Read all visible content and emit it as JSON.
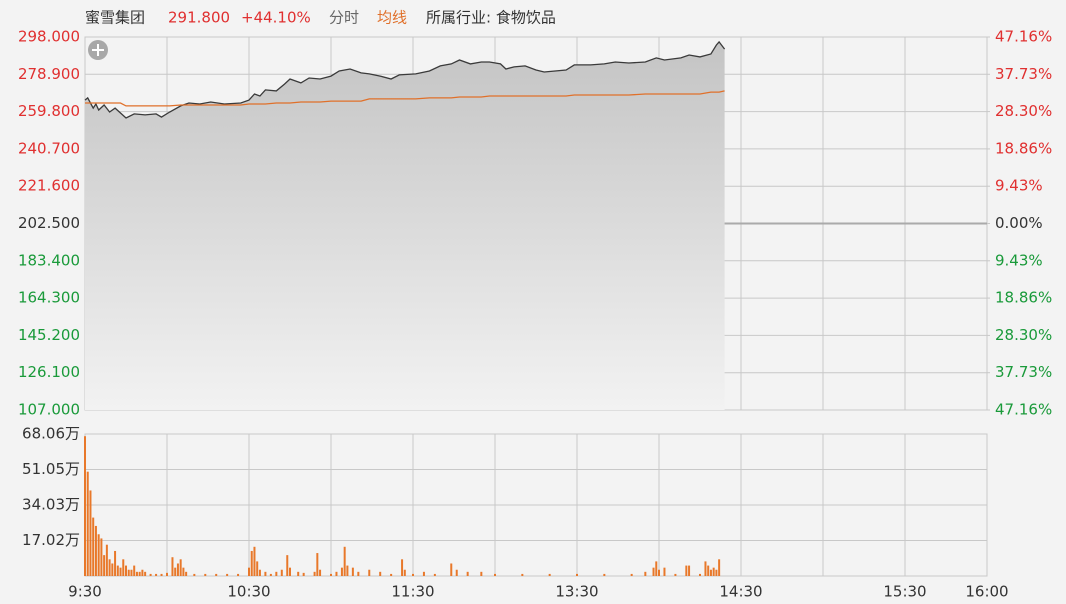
{
  "chart_data": [
    {
      "type": "line",
      "title": "蜜雪集团",
      "quote": "291.800",
      "change": "+44.10%",
      "mode": "分时",
      "industry": "所属行业: 食物饮品",
      "x": [
        0,
        1,
        3,
        4,
        5,
        7,
        9,
        11,
        13,
        15,
        18,
        22,
        26,
        28,
        31,
        35,
        38,
        42,
        46,
        51,
        57,
        60,
        62,
        64,
        66,
        70,
        73,
        75,
        79,
        82,
        86,
        90,
        93,
        97,
        101,
        104,
        108,
        112,
        115,
        121,
        126,
        130,
        134,
        137,
        141,
        145,
        148,
        152,
        154,
        157,
        161,
        165,
        168,
        172,
        176,
        179,
        185,
        190,
        194,
        199,
        205,
        209,
        212,
        218,
        221,
        225,
        229,
        231,
        232,
        234
      ],
      "series": [
        {
          "color": "#3a3a3a",
          "area": true,
          "values": [
            265.7,
            266.8,
            261.6,
            263.7,
            260.6,
            263.2,
            259.6,
            261.6,
            259.1,
            256.5,
            258.6,
            258.1,
            258.6,
            257.0,
            259.6,
            262.7,
            264.2,
            263.7,
            264.7,
            263.7,
            264.2,
            265.7,
            268.8,
            267.8,
            270.9,
            270.4,
            273.9,
            276.5,
            274.5,
            277.0,
            276.5,
            278.0,
            280.6,
            281.6,
            279.6,
            279.1,
            278.0,
            276.5,
            278.6,
            279.1,
            280.6,
            283.2,
            284.2,
            286.2,
            284.2,
            285.2,
            285.2,
            284.2,
            281.6,
            282.7,
            283.2,
            281.1,
            280.1,
            280.6,
            281.1,
            283.7,
            283.7,
            284.2,
            285.2,
            284.7,
            285.2,
            287.3,
            286.2,
            287.3,
            288.8,
            287.8,
            289.3,
            293.9,
            295.5,
            291.8
          ]
        },
        {
          "name": "均线",
          "color": "#e0702a",
          "values": [
            264.2,
            264.2,
            264.2,
            264.2,
            264.2,
            264.2,
            264.2,
            264.2,
            264.2,
            262.7,
            262.7,
            262.7,
            262.7,
            262.7,
            262.7,
            263.2,
            263.2,
            263.2,
            263.2,
            263.2,
            263.2,
            263.7,
            263.7,
            263.7,
            263.7,
            264.2,
            264.2,
            264.2,
            264.7,
            264.7,
            264.7,
            265.2,
            265.2,
            265.2,
            265.2,
            266.3,
            266.3,
            266.3,
            266.3,
            266.3,
            266.8,
            266.8,
            266.8,
            267.3,
            267.3,
            267.3,
            267.8,
            267.8,
            267.8,
            267.8,
            267.8,
            267.8,
            267.8,
            267.8,
            267.8,
            268.3,
            268.3,
            268.3,
            268.3,
            268.3,
            268.8,
            268.8,
            268.8,
            268.8,
            268.8,
            268.8,
            269.8,
            269.8,
            269.8,
            270.4
          ]
        }
      ],
      "xlim": [
        0,
        330
      ],
      "ylim": [
        107,
        298
      ],
      "yticks": [
        {
          "value": 298,
          "label": "298.000"
        },
        {
          "value": 278.9,
          "label": "278.900"
        },
        {
          "value": 259.8,
          "label": "259.800"
        },
        {
          "value": 240.7,
          "label": "240.700"
        },
        {
          "value": 221.6,
          "label": "221.600"
        },
        {
          "value": 202.5,
          "label": "202.500"
        },
        {
          "value": 183.4,
          "label": "183.400"
        },
        {
          "value": 164.3,
          "label": "164.300"
        },
        {
          "value": 145.2,
          "label": "145.200"
        },
        {
          "value": 126.1,
          "label": "126.100"
        },
        {
          "value": 107,
          "label": "107.000"
        }
      ],
      "y2lim": [
        -47.16,
        47.16
      ],
      "y2ticks": [
        {
          "value": 47.16,
          "label": "47.16%"
        },
        {
          "value": 37.73,
          "label": "37.73%"
        },
        {
          "value": 28.3,
          "label": "28.30%"
        },
        {
          "value": 18.86,
          "label": "18.86%"
        },
        {
          "value": 9.43,
          "label": "9.43%"
        },
        {
          "value": 0,
          "label": "0.00%"
        },
        {
          "value": -9.43,
          "label": "9.43%"
        },
        {
          "value": -18.86,
          "label": "18.86%"
        },
        {
          "value": -28.3,
          "label": "28.30%"
        },
        {
          "value": -37.73,
          "label": "37.73%"
        },
        {
          "value": -47.16,
          "label": "47.16%"
        }
      ],
      "up_color": "#e03030",
      "down_color": "#1a9a3a",
      "flat_color": "#333333",
      "grid": true
    },
    {
      "type": "bar",
      "color": "#e8782a",
      "x": [
        0,
        1,
        2,
        3,
        4,
        5,
        6,
        7,
        8,
        9,
        10,
        11,
        12,
        13,
        14,
        15,
        16,
        17,
        18,
        19,
        20,
        21,
        22,
        24,
        26,
        28,
        30,
        32,
        33,
        34,
        35,
        36,
        37,
        40,
        44,
        48,
        52,
        56,
        60,
        61,
        62,
        63,
        64,
        66,
        68,
        70,
        72,
        74,
        75,
        78,
        80,
        84,
        85,
        86,
        90,
        92,
        94,
        95,
        96,
        98,
        100,
        104,
        108,
        112,
        116,
        117,
        120,
        124,
        128,
        134,
        136,
        140,
        145,
        150,
        160,
        170,
        180,
        190,
        200,
        205,
        208,
        209,
        210,
        212,
        216,
        220,
        221,
        225,
        227,
        228,
        229,
        230,
        231,
        232
      ],
      "values": [
        67,
        50,
        41,
        28,
        24,
        20,
        18,
        10,
        15,
        8,
        6,
        12,
        5,
        4,
        8,
        5,
        3,
        3,
        5,
        2,
        2,
        3,
        2,
        1,
        1,
        1,
        1.5,
        9,
        4,
        6,
        8,
        4,
        2,
        1,
        1,
        1,
        1,
        1,
        4,
        12,
        14,
        7,
        3,
        2,
        1,
        2,
        3,
        10,
        4,
        2,
        1.5,
        2,
        11,
        3,
        1,
        2,
        4,
        14,
        5,
        4,
        2,
        3,
        2,
        1,
        8,
        3,
        1,
        2,
        1,
        6,
        3,
        2,
        2,
        1,
        1,
        1,
        1,
        1,
        1,
        2,
        4,
        7,
        3,
        4,
        1,
        5,
        5,
        1,
        7,
        5,
        3,
        4,
        3,
        8
      ],
      "xlim": [
        0,
        330
      ],
      "xticks": [
        {
          "value": 0,
          "label": "9:30"
        },
        {
          "value": 30,
          "label": null
        },
        {
          "value": 60,
          "label": "10:30"
        },
        {
          "value": 90,
          "label": null
        },
        {
          "value": 120,
          "label": "11:30"
        },
        {
          "value": 150,
          "label": null
        },
        {
          "value": 180,
          "label": "13:30"
        },
        {
          "value": 210,
          "label": null
        },
        {
          "value": 240,
          "label": "14:30"
        },
        {
          "value": 270,
          "label": null
        },
        {
          "value": 300,
          "label": "15:30"
        },
        {
          "value": 330,
          "label": "16:00"
        }
      ],
      "ylim": [
        0,
        68.06
      ],
      "yticks": [
        {
          "value": 68.06,
          "label": "68.06万"
        },
        {
          "value": 51.05,
          "label": "51.05万"
        },
        {
          "value": 34.03,
          "label": "34.03万"
        },
        {
          "value": 17.02,
          "label": "17.02万"
        }
      ],
      "grid": true
    }
  ]
}
